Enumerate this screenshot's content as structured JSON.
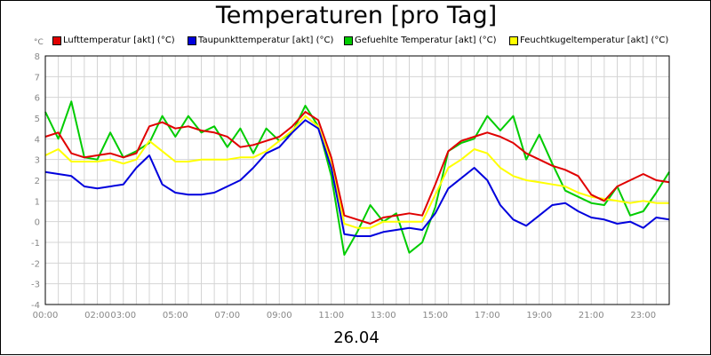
{
  "chart_data": {
    "type": "line",
    "title": "Temperaturen [pro Tag]",
    "unit_label": "°C",
    "date_label": "26.04",
    "ylim": [
      -4,
      8
    ],
    "yticks": [
      8,
      7,
      6,
      5,
      4,
      3,
      2,
      1,
      0,
      -1,
      -2,
      -3,
      -4
    ],
    "xlim": [
      0,
      24
    ],
    "xticks": [
      {
        "hour": 0,
        "label": "00:00"
      },
      {
        "hour": 2,
        "label": "02:00"
      },
      {
        "hour": 3,
        "label": "03:00"
      },
      {
        "hour": 5,
        "label": "05:00"
      },
      {
        "hour": 7,
        "label": "07:00"
      },
      {
        "hour": 9,
        "label": "09:00"
      },
      {
        "hour": 11,
        "label": "11:00"
      },
      {
        "hour": 13,
        "label": "13:00"
      },
      {
        "hour": 15,
        "label": "15:00"
      },
      {
        "hour": 17,
        "label": "17:00"
      },
      {
        "hour": 19,
        "label": "19:00"
      },
      {
        "hour": 21,
        "label": "21:00"
      },
      {
        "hour": 23,
        "label": "23:00"
      }
    ],
    "grid": true,
    "legend_position": "top",
    "series": [
      {
        "name": "Lufttemperatur [akt] (°C)",
        "color": "#e00000",
        "x": [
          0,
          0.5,
          1,
          1.5,
          2,
          2.5,
          3,
          3.5,
          4,
          4.5,
          5,
          5.5,
          6,
          6.5,
          7,
          7.5,
          8,
          8.5,
          9,
          9.5,
          10,
          10.5,
          11,
          11.5,
          12,
          12.5,
          13,
          13.5,
          14,
          14.5,
          15,
          15.5,
          16,
          16.5,
          17,
          17.5,
          18,
          18.5,
          19,
          19.5,
          20,
          20.5,
          21,
          21.5,
          22,
          22.5,
          23,
          23.5,
          24
        ],
        "y": [
          4.1,
          4.3,
          3.3,
          3.1,
          3.2,
          3.3,
          3.1,
          3.3,
          4.6,
          4.8,
          4.5,
          4.6,
          4.4,
          4.3,
          4.1,
          3.6,
          3.7,
          3.9,
          4.1,
          4.6,
          5.3,
          4.9,
          3.1,
          0.3,
          0.1,
          -0.1,
          0.2,
          0.3,
          0.4,
          0.3,
          1.8,
          3.4,
          3.9,
          4.1,
          4.3,
          4.1,
          3.8,
          3.3,
          3.0,
          2.7,
          2.5,
          2.2,
          1.3,
          1.0,
          1.7,
          2.0,
          2.3,
          2.0,
          1.9
        ]
      },
      {
        "name": "Taupunkttemperatur [akt] (°C)",
        "color": "#0000dd",
        "x": [
          0,
          0.5,
          1,
          1.5,
          2,
          2.5,
          3,
          3.5,
          4,
          4.5,
          5,
          5.5,
          6,
          6.5,
          7,
          7.5,
          8,
          8.5,
          9,
          9.5,
          10,
          10.5,
          11,
          11.5,
          12,
          12.5,
          13,
          13.5,
          14,
          14.5,
          15,
          15.5,
          16,
          16.5,
          17,
          17.5,
          18,
          18.5,
          19,
          19.5,
          20,
          20.5,
          21,
          21.5,
          22,
          22.5,
          23,
          23.5,
          24
        ],
        "y": [
          2.4,
          2.3,
          2.2,
          1.7,
          1.6,
          1.7,
          1.8,
          2.6,
          3.2,
          1.8,
          1.4,
          1.3,
          1.3,
          1.4,
          1.7,
          2.0,
          2.6,
          3.3,
          3.6,
          4.3,
          4.9,
          4.5,
          2.6,
          -0.6,
          -0.7,
          -0.7,
          -0.5,
          -0.4,
          -0.3,
          -0.4,
          0.4,
          1.6,
          2.1,
          2.6,
          2.0,
          0.8,
          0.1,
          -0.2,
          0.3,
          0.8,
          0.9,
          0.5,
          0.2,
          0.1,
          -0.1,
          0.0,
          -0.3,
          0.2,
          0.1
        ]
      },
      {
        "name": "Gefuehlte Temperatur [akt] (°C)",
        "color": "#00cc00",
        "x": [
          0,
          0.5,
          1,
          1.5,
          2,
          2.5,
          3,
          3.5,
          4,
          4.5,
          5,
          5.5,
          6,
          6.5,
          7,
          7.5,
          8,
          8.5,
          9,
          9.5,
          10,
          10.5,
          11,
          11.5,
          12,
          12.5,
          13,
          13.5,
          14,
          14.5,
          15,
          15.5,
          16,
          16.5,
          17,
          17.5,
          18,
          18.5,
          19,
          19.5,
          20,
          20.5,
          21,
          21.5,
          22,
          22.5,
          23,
          23.5,
          24
        ],
        "y": [
          5.3,
          4.0,
          5.8,
          3.1,
          3.0,
          4.3,
          3.1,
          3.4,
          3.8,
          5.1,
          4.1,
          5.1,
          4.3,
          4.6,
          3.6,
          4.5,
          3.3,
          4.5,
          3.9,
          4.3,
          5.6,
          4.6,
          2.2,
          -1.6,
          -0.5,
          0.8,
          0.0,
          0.4,
          -1.5,
          -1.0,
          0.7,
          3.4,
          3.8,
          4.0,
          5.1,
          4.4,
          5.1,
          3.0,
          4.2,
          2.8,
          1.5,
          1.2,
          0.9,
          0.8,
          1.7,
          0.3,
          0.5,
          1.4,
          2.4
        ]
      },
      {
        "name": "Feuchtkugeltemperatur [akt] (°C)",
        "color": "#ffff00",
        "x": [
          0,
          0.5,
          1,
          1.5,
          2,
          2.5,
          3,
          3.5,
          4,
          4.5,
          5,
          5.5,
          6,
          6.5,
          7,
          7.5,
          8,
          8.5,
          9,
          9.5,
          10,
          10.5,
          11,
          11.5,
          12,
          12.5,
          13,
          13.5,
          14,
          14.5,
          15,
          15.5,
          16,
          16.5,
          17,
          17.5,
          18,
          18.5,
          19,
          19.5,
          20,
          20.5,
          21,
          21.5,
          22,
          22.5,
          23,
          23.5,
          24
        ],
        "y": [
          3.2,
          3.5,
          2.9,
          2.9,
          2.9,
          3.0,
          2.8,
          3.0,
          3.9,
          3.4,
          2.9,
          2.9,
          3.0,
          3.0,
          3.0,
          3.1,
          3.1,
          3.4,
          3.9,
          4.4,
          5.1,
          4.6,
          2.9,
          -0.1,
          -0.3,
          -0.3,
          0.0,
          0.0,
          0.0,
          0.0,
          1.3,
          2.6,
          3.0,
          3.5,
          3.3,
          2.6,
          2.2,
          2.0,
          1.9,
          1.8,
          1.7,
          1.4,
          1.2,
          1.1,
          1.0,
          0.9,
          1.0,
          0.9,
          0.9
        ]
      }
    ]
  }
}
